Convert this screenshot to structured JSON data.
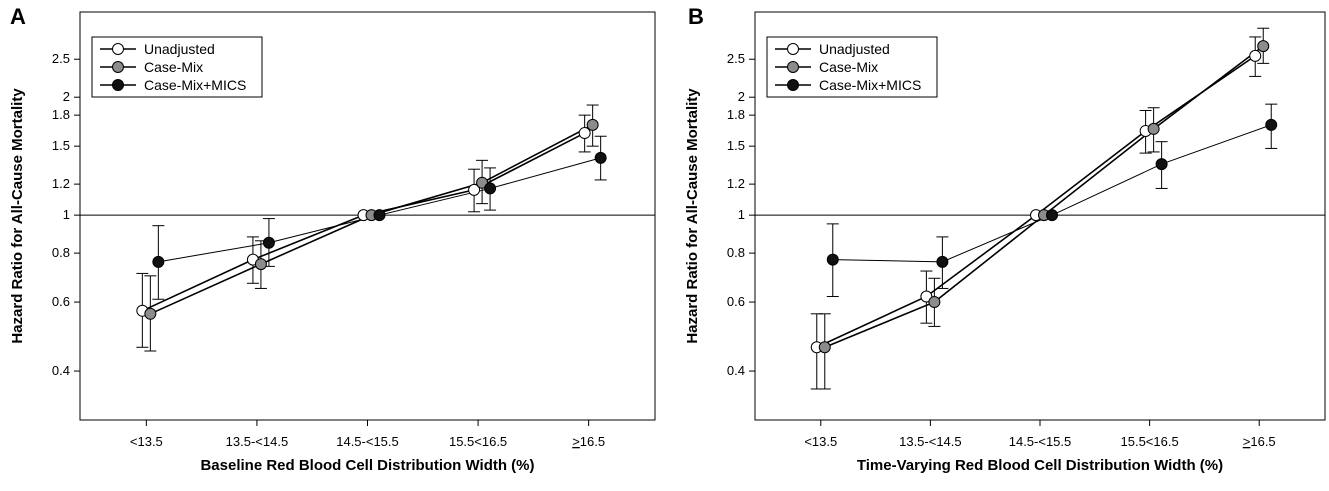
{
  "chart_data": [
    {
      "type": "line",
      "panel_label": "A",
      "xlabel": "Baseline Red Blood Cell Distribution Width (%)",
      "ylabel": "Hazard Ratio for All-Cause Mortality",
      "categories": [
        "<13.5",
        "13.5-<14.5",
        "14.5-<15.5",
        "15.5<16.5",
        "≥16.5"
      ],
      "y_scale": "log",
      "ylim": [
        0.3,
        3.3
      ],
      "y_ticks": [
        0.4,
        0.6,
        0.8,
        1,
        1.2,
        1.5,
        1.8,
        2,
        2.5
      ],
      "y_tick_labels": [
        "0.4",
        "0.6",
        "0.8",
        "1",
        "1.2",
        "1.5",
        "1.8",
        "2",
        "2.5"
      ],
      "reference_line": 1,
      "legend_position": "top-left",
      "series": [
        {
          "name": "Unadjusted",
          "marker": "white",
          "values": [
            0.57,
            0.77,
            1.0,
            1.16,
            1.62
          ],
          "lower": [
            0.46,
            0.67,
            1.0,
            1.02,
            1.45
          ],
          "upper": [
            0.71,
            0.88,
            1.0,
            1.31,
            1.8
          ]
        },
        {
          "name": "Case-Mix",
          "marker": "gray",
          "values": [
            0.56,
            0.75,
            1.0,
            1.21,
            1.7
          ],
          "lower": [
            0.45,
            0.65,
            1.0,
            1.07,
            1.5
          ],
          "upper": [
            0.7,
            0.86,
            1.0,
            1.38,
            1.91
          ]
        },
        {
          "name": "Case-Mix+MICS",
          "marker": "black",
          "values": [
            0.76,
            0.85,
            1.0,
            1.17,
            1.4
          ],
          "lower": [
            0.61,
            0.74,
            1.0,
            1.03,
            1.23
          ],
          "upper": [
            0.94,
            0.98,
            1.0,
            1.32,
            1.59
          ]
        }
      ]
    },
    {
      "type": "line",
      "panel_label": "B",
      "xlabel": "Time-Varying Red Blood Cell Distribution Width (%)",
      "ylabel": "Hazard Ratio for All-Cause Mortality",
      "categories": [
        "<13.5",
        "13.5-<14.5",
        "14.5-<15.5",
        "15.5<16.5",
        "≥16.5"
      ],
      "y_scale": "log",
      "ylim": [
        0.3,
        3.3
      ],
      "y_ticks": [
        0.4,
        0.6,
        0.8,
        1,
        1.2,
        1.5,
        1.8,
        2,
        2.5
      ],
      "y_tick_labels": [
        "0.4",
        "0.6",
        "0.8",
        "1",
        "1.2",
        "1.5",
        "1.8",
        "2",
        "2.5"
      ],
      "reference_line": 1,
      "legend_position": "top-left",
      "series": [
        {
          "name": "Unadjusted",
          "marker": "white",
          "values": [
            0.46,
            0.62,
            1.0,
            1.64,
            2.55
          ],
          "lower": [
            0.36,
            0.53,
            1.0,
            1.44,
            2.26
          ],
          "upper": [
            0.56,
            0.72,
            1.0,
            1.85,
            2.85
          ]
        },
        {
          "name": "Case-Mix",
          "marker": "gray",
          "values": [
            0.46,
            0.6,
            1.0,
            1.66,
            2.7
          ],
          "lower": [
            0.36,
            0.52,
            1.0,
            1.45,
            2.44
          ],
          "upper": [
            0.56,
            0.69,
            1.0,
            1.88,
            3.0
          ]
        },
        {
          "name": "Case-Mix+MICS",
          "marker": "black",
          "values": [
            0.77,
            0.76,
            1.0,
            1.35,
            1.7
          ],
          "lower": [
            0.62,
            0.65,
            1.0,
            1.17,
            1.48
          ],
          "upper": [
            0.95,
            0.88,
            1.0,
            1.54,
            1.92
          ]
        }
      ]
    }
  ],
  "colors": {
    "white": "#ffffff",
    "gray": "#8c8c8c",
    "black": "#111111",
    "line": "#000000"
  }
}
